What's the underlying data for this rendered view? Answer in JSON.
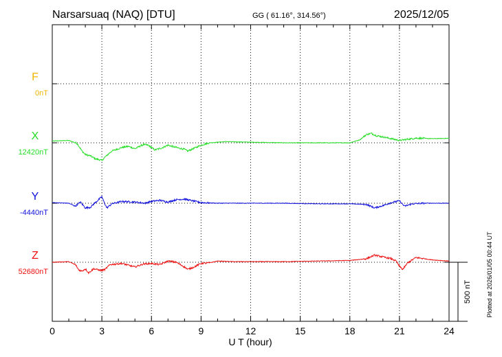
{
  "header": {
    "station": "Narsarsuaq (NAQ)  [DTU]",
    "coords": "GG ( 61.16°, 314.56°)",
    "date": "2025/12/05"
  },
  "footer": {
    "plotted": "Plotted at 2026/01/05 00:44 UT"
  },
  "chart_data": {
    "type": "line",
    "title": "Narsarsuaq (NAQ)  [DTU]",
    "xlabel": "U T (hour)",
    "xlim": [
      0,
      24
    ],
    "xticks": [
      "0",
      "3",
      "6",
      "9",
      "12",
      "15",
      "18",
      "21",
      "24"
    ],
    "scale_bar": {
      "label": "500 nT",
      "value_nT": 500
    },
    "grid": true,
    "series": [
      {
        "name": "F",
        "baseline": "0nT",
        "color": "#f0b400",
        "t": [],
        "v": []
      },
      {
        "name": "X",
        "baseline": "12420nT",
        "color": "#22dd22",
        "t": [
          0,
          1,
          1.5,
          1.8,
          2,
          2.3,
          2.6,
          2.9,
          3.0,
          3.2,
          3.6,
          4.2,
          4.6,
          5.0,
          5.5,
          5.8,
          6.2,
          6.6,
          7.0,
          7.5,
          8.0,
          8.2,
          8.6,
          9.0,
          9.5,
          10.5,
          12,
          14,
          16,
          18.0,
          18.6,
          19.0,
          19.3,
          19.6,
          20.0,
          20.5,
          21.0,
          21.5,
          22,
          23,
          24
        ],
        "v": [
          15,
          20,
          -5,
          -70,
          -100,
          -110,
          -135,
          -145,
          -150,
          -120,
          -70,
          -40,
          -30,
          -50,
          -15,
          -20,
          -60,
          -45,
          -20,
          -40,
          -55,
          -70,
          -45,
          -20,
          0,
          10,
          5,
          0,
          0,
          0,
          25,
          70,
          80,
          60,
          50,
          35,
          20,
          30,
          40,
          35,
          38
        ]
      },
      {
        "name": "Y",
        "baseline": "-4440nT",
        "color": "#1010dd",
        "t": [
          0,
          1,
          1.4,
          1.7,
          2.0,
          2.3,
          2.6,
          3.0,
          3.1,
          3.3,
          3.6,
          4.2,
          5.0,
          5.6,
          6.0,
          6.5,
          7.0,
          7.5,
          8.0,
          8.5,
          9.0,
          10,
          12,
          14,
          16,
          18,
          19.0,
          19.5,
          20.0,
          20.5,
          21.0,
          21.3,
          21.8,
          22.5,
          24
        ],
        "v": [
          5,
          0,
          -25,
          10,
          -40,
          -35,
          5,
          55,
          20,
          -40,
          -5,
          15,
          10,
          0,
          15,
          25,
          10,
          30,
          35,
          20,
          5,
          0,
          0,
          0,
          -5,
          -5,
          -10,
          -40,
          -20,
          5,
          20,
          -25,
          -5,
          0,
          0
        ]
      },
      {
        "name": "Z",
        "baseline": "52680nT",
        "color": "#ee1111",
        "t": [
          0,
          1,
          1.4,
          1.6,
          1.8,
          2.0,
          2.2,
          2.5,
          2.8,
          3.0,
          3.2,
          3.5,
          4.2,
          5.0,
          5.5,
          6.0,
          6.5,
          7.0,
          7.5,
          8.0,
          8.2,
          8.5,
          9.0,
          9.5,
          10,
          11,
          12,
          14,
          16,
          18,
          19.0,
          19.5,
          20.0,
          20.5,
          20.8,
          21.0,
          21.2,
          21.5,
          22,
          23,
          24
        ],
        "v": [
          0,
          5,
          -20,
          -65,
          -75,
          -55,
          -90,
          -55,
          -65,
          -70,
          -60,
          -20,
          -10,
          -40,
          -15,
          -10,
          -20,
          10,
          0,
          -40,
          -60,
          -45,
          -10,
          -5,
          10,
          5,
          5,
          5,
          10,
          15,
          30,
          60,
          45,
          30,
          10,
          -35,
          -60,
          -5,
          40,
          20,
          10
        ]
      }
    ]
  }
}
